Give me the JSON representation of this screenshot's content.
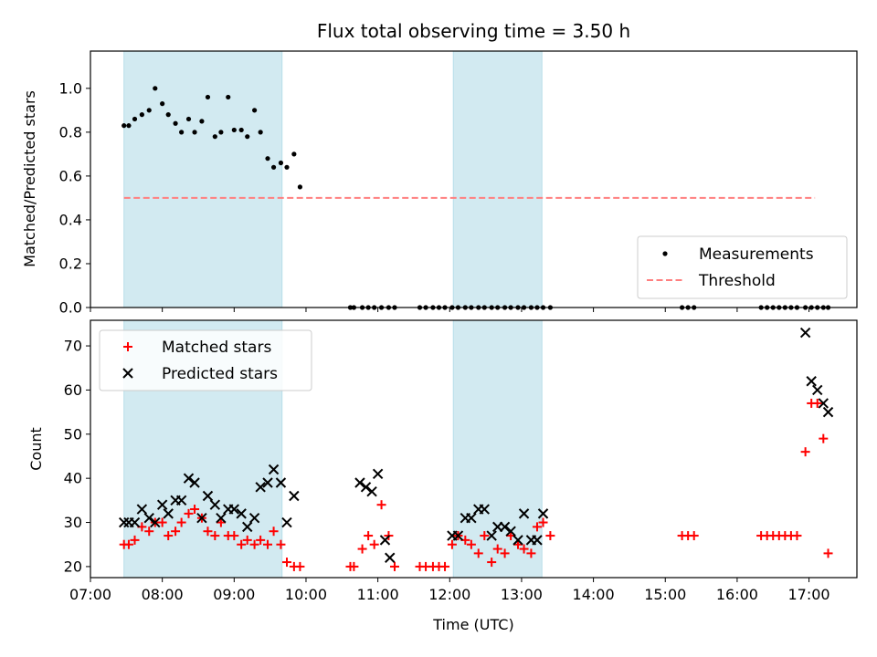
{
  "figure": {
    "title": "Flux total observing time = 3.50 h",
    "xlabel": "Time (UTC)",
    "x_ticks": [
      "07:00",
      "08:00",
      "09:00",
      "10:00",
      "11:00",
      "12:00",
      "13:00",
      "14:00",
      "15:00",
      "16:00",
      "17:00"
    ]
  },
  "chart_data": [
    {
      "type": "scatter",
      "ylabel": "Matched/Predicted stars",
      "xlim": [
        "07:00",
        "17:40"
      ],
      "ylim": [
        0,
        1.17
      ],
      "y_ticks": [
        "0.0",
        "0.2",
        "0.4",
        "0.6",
        "0.8",
        "1.0"
      ],
      "shaded_intervals": [
        [
          "07:28",
          "09:40"
        ],
        [
          "12:03",
          "13:17"
        ]
      ],
      "shade_color": "#add8e6",
      "legend_position": "lower right",
      "threshold": {
        "name": "Threshold",
        "value": 0.5,
        "x_start": "07:28",
        "x_end": "17:05",
        "color": "#ff7f7f",
        "style": "dashed"
      },
      "series": [
        {
          "name": "Measurements",
          "color": "#000000",
          "marker": "dot",
          "x": [
            "07:28",
            "07:32",
            "07:37",
            "07:43",
            "07:49",
            "07:54",
            "08:00",
            "08:05",
            "08:11",
            "08:16",
            "08:22",
            "08:27",
            "08:33",
            "08:38",
            "08:44",
            "08:49",
            "08:55",
            "09:00",
            "09:06",
            "09:11",
            "09:17",
            "09:22",
            "09:28",
            "09:33",
            "09:39",
            "09:44",
            "09:50",
            "09:55",
            "10:37",
            "10:40",
            "10:47",
            "10:52",
            "10:57",
            "11:03",
            "11:09",
            "11:14",
            "11:35",
            "11:40",
            "11:46",
            "11:51",
            "11:56",
            "12:02",
            "12:07",
            "12:13",
            "12:18",
            "12:24",
            "12:29",
            "12:35",
            "12:40",
            "12:46",
            "12:51",
            "12:57",
            "13:02",
            "13:08",
            "13:13",
            "13:18",
            "13:24",
            "15:14",
            "15:19",
            "15:24",
            "16:20",
            "16:25",
            "16:30",
            "16:35",
            "16:40",
            "16:45",
            "16:50",
            "16:57",
            "17:02",
            "17:07",
            "17:12",
            "17:16"
          ],
          "y": [
            0.83,
            0.83,
            0.86,
            0.88,
            0.9,
            1.0,
            0.93,
            0.88,
            0.84,
            0.8,
            0.86,
            0.8,
            0.85,
            0.96,
            0.78,
            0.8,
            0.96,
            0.81,
            0.81,
            0.78,
            0.9,
            0.8,
            0.68,
            0.64,
            0.66,
            0.64,
            0.7,
            0.55,
            0.0,
            0.0,
            0.0,
            0.0,
            0.0,
            0.0,
            0.0,
            0.0,
            0.0,
            0.0,
            0.0,
            0.0,
            0.0,
            0.0,
            0.0,
            0.0,
            0.0,
            0.0,
            0.0,
            0.0,
            0.0,
            0.0,
            0.0,
            0.0,
            0.0,
            0.0,
            0.0,
            0.0,
            0.0,
            0.0,
            0.0,
            0.0,
            0.0,
            0.0,
            0.0,
            0.0,
            0.0,
            0.0,
            0.0,
            0.0,
            0.0,
            0.0,
            0.0,
            0.0
          ]
        }
      ]
    },
    {
      "type": "scatter",
      "ylabel": "Count",
      "xlim": [
        "07:00",
        "17:40"
      ],
      "ylim": [
        17.5,
        75.8
      ],
      "y_ticks": [
        "20",
        "30",
        "40",
        "50",
        "60",
        "70"
      ],
      "shaded_intervals": [
        [
          "07:28",
          "09:40"
        ],
        [
          "12:03",
          "13:17"
        ]
      ],
      "shade_color": "#add8e6",
      "legend_position": "upper left",
      "series": [
        {
          "name": "Matched stars",
          "color": "#ff0000",
          "marker": "plus",
          "x": [
            "07:28",
            "07:32",
            "07:37",
            "07:43",
            "07:49",
            "07:54",
            "08:00",
            "08:05",
            "08:11",
            "08:16",
            "08:22",
            "08:27",
            "08:33",
            "08:38",
            "08:44",
            "08:49",
            "08:55",
            "09:00",
            "09:06",
            "09:11",
            "09:17",
            "09:22",
            "09:28",
            "09:33",
            "09:39",
            "09:44",
            "09:50",
            "09:55",
            "10:37",
            "10:40",
            "10:47",
            "10:52",
            "10:57",
            "11:03",
            "11:09",
            "11:14",
            "11:35",
            "11:40",
            "11:46",
            "11:51",
            "11:56",
            "12:02",
            "12:07",
            "12:13",
            "12:18",
            "12:24",
            "12:29",
            "12:35",
            "12:40",
            "12:46",
            "12:51",
            "12:57",
            "13:02",
            "13:08",
            "13:13",
            "13:18",
            "13:24",
            "15:14",
            "15:19",
            "15:24",
            "16:20",
            "16:25",
            "16:30",
            "16:35",
            "16:40",
            "16:45",
            "16:50",
            "16:57",
            "17:02",
            "17:07",
            "17:12",
            "17:16"
          ],
          "y": [
            25,
            25,
            26,
            29,
            28,
            30,
            30,
            27,
            28,
            30,
            32,
            33,
            31,
            28,
            27,
            30,
            27,
            27,
            25,
            26,
            25,
            26,
            25,
            28,
            25,
            21,
            20,
            20,
            20,
            20,
            24,
            27,
            25,
            34,
            27,
            20,
            20,
            20,
            20,
            20,
            20,
            25,
            27,
            26,
            25,
            23,
            27,
            21,
            24,
            23,
            27,
            25,
            24,
            23,
            29,
            30,
            27,
            27,
            27,
            27,
            27,
            27,
            27,
            27,
            27,
            27,
            27,
            46,
            57,
            57,
            49,
            23
          ]
        },
        {
          "name": "Predicted stars",
          "color": "#000000",
          "marker": "x",
          "x": [
            "07:28",
            "07:32",
            "07:37",
            "07:43",
            "07:49",
            "07:54",
            "08:00",
            "08:05",
            "08:11",
            "08:16",
            "08:22",
            "08:27",
            "08:33",
            "08:38",
            "08:44",
            "08:49",
            "08:55",
            "09:00",
            "09:06",
            "09:11",
            "09:17",
            "09:22",
            "09:28",
            "09:33",
            "09:39",
            "09:44",
            "09:50",
            "10:45",
            "10:50",
            "10:55",
            "11:00",
            "11:06",
            "11:10",
            "12:02",
            "12:07",
            "12:13",
            "12:18",
            "12:24",
            "12:29",
            "12:35",
            "12:40",
            "12:46",
            "12:51",
            "12:57",
            "13:02",
            "13:08",
            "13:13",
            "13:18",
            "16:57",
            "17:02",
            "17:07",
            "17:12",
            "17:16"
          ],
          "y": [
            30,
            30,
            30,
            33,
            31,
            30,
            34,
            32,
            35,
            35,
            40,
            39,
            31,
            36,
            34,
            31,
            33,
            33,
            32,
            29,
            31,
            38,
            39,
            42,
            39,
            30,
            36,
            39,
            38,
            37,
            41,
            26,
            22,
            27,
            27,
            31,
            31,
            33,
            33,
            27,
            29,
            29,
            28,
            26,
            32,
            26,
            26,
            32,
            73,
            62,
            60,
            57,
            55
          ]
        }
      ]
    }
  ]
}
